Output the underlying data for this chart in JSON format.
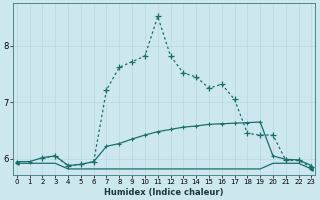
{
  "xlabel": "Humidex (Indice chaleur)",
  "bg_color": "#cce8ee",
  "line_color": "#1a6e6a",
  "grid_color": "#b8d8de",
  "x_ticks": [
    0,
    1,
    2,
    3,
    4,
    5,
    6,
    7,
    8,
    9,
    10,
    11,
    12,
    13,
    14,
    15,
    16,
    17,
    18,
    19,
    20,
    21,
    22,
    23
  ],
  "y_ticks": [
    6,
    7,
    8
  ],
  "ylim": [
    5.72,
    8.75
  ],
  "xlim": [
    -0.3,
    23.3
  ],
  "series_flat": {
    "x": [
      0,
      1,
      2,
      3,
      4,
      5,
      6,
      7,
      8,
      9,
      10,
      11,
      12,
      13,
      14,
      15,
      16,
      17,
      18,
      19,
      20,
      21,
      22,
      23
    ],
    "y": [
      5.92,
      5.92,
      5.92,
      5.92,
      5.82,
      5.82,
      5.82,
      5.82,
      5.82,
      5.82,
      5.82,
      5.82,
      5.82,
      5.82,
      5.82,
      5.82,
      5.82,
      5.82,
      5.82,
      5.82,
      5.92,
      5.92,
      5.92,
      5.82
    ]
  },
  "series_slow": {
    "x": [
      0,
      1,
      2,
      3,
      4,
      5,
      6,
      7,
      8,
      9,
      10,
      11,
      12,
      13,
      14,
      15,
      16,
      17,
      18,
      19,
      20,
      21,
      22,
      23
    ],
    "y": [
      5.95,
      5.95,
      6.02,
      6.05,
      5.88,
      5.9,
      5.95,
      6.22,
      6.27,
      6.35,
      6.42,
      6.48,
      6.52,
      6.56,
      6.58,
      6.61,
      6.62,
      6.63,
      6.64,
      6.65,
      6.05,
      5.99,
      5.98,
      5.88
    ]
  },
  "series_peak": {
    "x": [
      2,
      3,
      4,
      5,
      6,
      7,
      8,
      9,
      10,
      11,
      12,
      13,
      14,
      15,
      16,
      17,
      18,
      19,
      20,
      21,
      22,
      23
    ],
    "y": [
      6.02,
      6.05,
      5.88,
      5.9,
      5.95,
      7.22,
      7.62,
      7.72,
      7.82,
      8.52,
      7.82,
      7.52,
      7.45,
      7.25,
      7.32,
      7.05,
      6.45,
      6.42,
      6.42,
      5.97,
      5.97,
      5.85
    ]
  }
}
